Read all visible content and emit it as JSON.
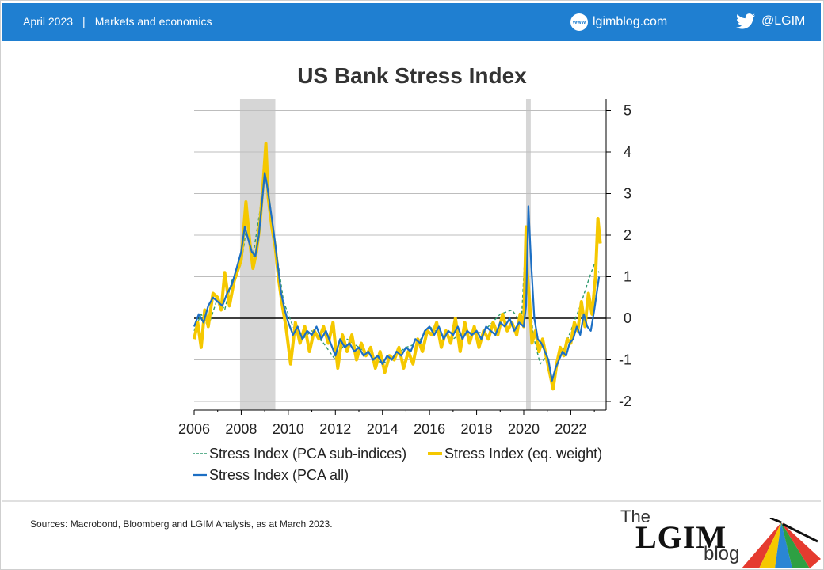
{
  "header": {
    "date": "April 2023",
    "section": "Markets and economics",
    "site_icon": "www",
    "site": "lgimblog.com",
    "twitter_icon": "twitter-bird-icon",
    "twitter": "@LGIM"
  },
  "colors": {
    "header_bg": "#1f7fd1",
    "pca_sub": "#2f9a6e",
    "eq_weight": "#f5c800",
    "pca_all": "#1c6fc4",
    "recession_band": "#d6d6d6"
  },
  "chart_data": {
    "type": "line",
    "title": "US Bank Stress Index",
    "xlim": [
      2006,
      2023.6
    ],
    "ylim": [
      -2.2,
      5.2
    ],
    "x_ticks": [
      "2006",
      "2008",
      "2010",
      "2012",
      "2014",
      "2016",
      "2018",
      "2020",
      "2022"
    ],
    "y_ticks": [
      "5",
      "4",
      "3",
      "2",
      "1",
      "0",
      "-1",
      "-2"
    ],
    "y_axis_side": "right",
    "grid": "horizontal",
    "recession_bands": [
      [
        2007.95,
        2009.45
      ],
      [
        2020.1,
        2020.3
      ]
    ],
    "legend_position": "bottom",
    "series": [
      {
        "name": "Stress Index (PCA sub-indices)",
        "style": "dashed",
        "x": [
          2006.0,
          2006.3,
          2006.6,
          2007.0,
          2007.3,
          2007.6,
          2008.0,
          2008.2,
          2008.5,
          2008.8,
          2009.0,
          2009.2,
          2009.5,
          2009.8,
          2010.2,
          2010.6,
          2011.0,
          2011.5,
          2012.0,
          2012.5,
          2013.0,
          2013.5,
          2014.0,
          2014.5,
          2015.0,
          2015.5,
          2016.0,
          2016.5,
          2017.0,
          2017.5,
          2018.0,
          2018.5,
          2019.0,
          2019.5,
          2019.9,
          2020.1,
          2020.2,
          2020.4,
          2020.7,
          2021.0,
          2021.2,
          2021.5,
          2021.8,
          2022.0,
          2022.4,
          2022.8,
          2023.0,
          2023.2
        ],
        "y": [
          -0.3,
          0.1,
          -0.2,
          0.5,
          0.2,
          0.9,
          1.3,
          2.1,
          1.5,
          2.6,
          3.7,
          2.6,
          1.6,
          0.4,
          -0.2,
          -0.5,
          -0.3,
          -0.6,
          -1.0,
          -0.5,
          -0.7,
          -0.9,
          -1.1,
          -0.9,
          -0.7,
          -0.6,
          -0.2,
          -0.4,
          -0.5,
          -0.3,
          -0.4,
          -0.2,
          0.1,
          0.2,
          -0.1,
          2.1,
          0.9,
          -0.4,
          -1.1,
          -0.9,
          -1.6,
          -1.0,
          -0.6,
          -0.3,
          0.3,
          1.0,
          1.3,
          1.1
        ]
      },
      {
        "name": "Stress Index (eq. weight)",
        "style": "solid-thick",
        "x": [
          2006.0,
          2006.15,
          2006.3,
          2006.45,
          2006.6,
          2006.8,
          2007.0,
          2007.15,
          2007.3,
          2007.5,
          2007.7,
          2008.0,
          2008.1,
          2008.2,
          2008.35,
          2008.5,
          2008.65,
          2008.8,
          2008.95,
          2009.05,
          2009.15,
          2009.3,
          2009.45,
          2009.6,
          2009.75,
          2009.9,
          2010.1,
          2010.3,
          2010.5,
          2010.7,
          2010.9,
          2011.1,
          2011.3,
          2011.5,
          2011.7,
          2011.9,
          2012.1,
          2012.3,
          2012.5,
          2012.7,
          2012.9,
          2013.1,
          2013.3,
          2013.5,
          2013.7,
          2013.9,
          2014.1,
          2014.3,
          2014.5,
          2014.7,
          2014.9,
          2015.1,
          2015.3,
          2015.5,
          2015.7,
          2015.9,
          2016.1,
          2016.3,
          2016.5,
          2016.7,
          2016.9,
          2017.1,
          2017.3,
          2017.5,
          2017.7,
          2017.9,
          2018.1,
          2018.3,
          2018.5,
          2018.7,
          2018.9,
          2019.1,
          2019.3,
          2019.5,
          2019.7,
          2019.85,
          2020.0,
          2020.1,
          2020.15,
          2020.25,
          2020.35,
          2020.5,
          2020.65,
          2020.8,
          2020.95,
          2021.1,
          2021.25,
          2021.4,
          2021.55,
          2021.7,
          2021.85,
          2022.0,
          2022.15,
          2022.3,
          2022.45,
          2022.6,
          2022.75,
          2022.9,
          2023.05,
          2023.15,
          2023.25
        ],
        "y": [
          -0.5,
          -0.1,
          -0.7,
          0.2,
          -0.2,
          0.6,
          0.5,
          0.2,
          1.1,
          0.3,
          0.9,
          1.4,
          2.1,
          2.8,
          1.9,
          1.2,
          1.6,
          2.3,
          3.4,
          4.2,
          2.9,
          2.2,
          1.7,
          0.9,
          0.3,
          -0.2,
          -1.1,
          -0.1,
          -0.6,
          -0.2,
          -0.8,
          -0.3,
          -0.5,
          -0.2,
          -0.6,
          -0.1,
          -1.2,
          -0.4,
          -0.8,
          -0.4,
          -1.0,
          -0.6,
          -0.9,
          -0.7,
          -1.2,
          -0.8,
          -1.3,
          -0.9,
          -1.0,
          -0.7,
          -1.2,
          -0.8,
          -1.1,
          -0.5,
          -0.8,
          -0.3,
          -0.4,
          -0.1,
          -0.7,
          -0.3,
          -0.6,
          0.0,
          -0.8,
          -0.1,
          -0.6,
          -0.2,
          -0.7,
          -0.3,
          -0.5,
          -0.1,
          -0.4,
          0.1,
          -0.3,
          -0.1,
          -0.4,
          0.1,
          -0.2,
          2.2,
          1.1,
          0.4,
          -0.6,
          -0.3,
          -0.8,
          -0.5,
          -0.9,
          -1.3,
          -1.7,
          -1.1,
          -0.7,
          -0.9,
          -0.5,
          -0.6,
          -0.1,
          -0.3,
          0.4,
          -0.2,
          0.6,
          0.1,
          1.0,
          2.4,
          1.8
        ]
      },
      {
        "name": "Stress Index (PCA all)",
        "style": "solid",
        "x": [
          2006.0,
          2006.2,
          2006.4,
          2006.6,
          2006.8,
          2007.0,
          2007.2,
          2007.4,
          2007.6,
          2007.8,
          2008.0,
          2008.15,
          2008.3,
          2008.45,
          2008.6,
          2008.75,
          2008.9,
          2009.0,
          2009.1,
          2009.25,
          2009.4,
          2009.55,
          2009.7,
          2009.85,
          2010.0,
          2010.2,
          2010.4,
          2010.6,
          2010.8,
          2011.0,
          2011.2,
          2011.4,
          2011.6,
          2011.8,
          2012.0,
          2012.2,
          2012.4,
          2012.6,
          2012.8,
          2013.0,
          2013.2,
          2013.4,
          2013.6,
          2013.8,
          2014.0,
          2014.2,
          2014.4,
          2014.6,
          2014.8,
          2015.0,
          2015.2,
          2015.4,
          2015.6,
          2015.8,
          2016.0,
          2016.2,
          2016.4,
          2016.6,
          2016.8,
          2017.0,
          2017.2,
          2017.4,
          2017.6,
          2017.8,
          2018.0,
          2018.2,
          2018.4,
          2018.6,
          2018.8,
          2019.0,
          2019.2,
          2019.4,
          2019.6,
          2019.8,
          2020.0,
          2020.1,
          2020.2,
          2020.3,
          2020.45,
          2020.6,
          2020.75,
          2020.9,
          2021.05,
          2021.2,
          2021.35,
          2021.5,
          2021.65,
          2021.8,
          2021.95,
          2022.1,
          2022.25,
          2022.4,
          2022.55,
          2022.7,
          2022.85,
          2023.0,
          2023.1,
          2023.2
        ],
        "y": [
          -0.2,
          0.1,
          -0.1,
          0.3,
          0.5,
          0.4,
          0.3,
          0.6,
          0.8,
          1.2,
          1.6,
          2.2,
          1.9,
          1.6,
          1.5,
          2.0,
          2.9,
          3.5,
          3.2,
          2.6,
          2.0,
          1.3,
          0.6,
          0.2,
          -0.1,
          -0.4,
          -0.2,
          -0.5,
          -0.3,
          -0.4,
          -0.2,
          -0.5,
          -0.3,
          -0.6,
          -0.9,
          -0.5,
          -0.7,
          -0.6,
          -0.8,
          -0.7,
          -0.9,
          -0.8,
          -1.0,
          -0.9,
          -1.1,
          -0.9,
          -1.0,
          -0.8,
          -0.9,
          -0.7,
          -0.8,
          -0.5,
          -0.6,
          -0.3,
          -0.2,
          -0.4,
          -0.2,
          -0.5,
          -0.3,
          -0.4,
          -0.2,
          -0.5,
          -0.3,
          -0.4,
          -0.3,
          -0.5,
          -0.2,
          -0.3,
          -0.4,
          -0.1,
          -0.2,
          0.0,
          -0.3,
          -0.1,
          -0.2,
          0.3,
          2.7,
          1.5,
          0.0,
          -0.5,
          -0.6,
          -0.8,
          -1.0,
          -1.5,
          -1.2,
          -1.0,
          -0.8,
          -0.9,
          -0.6,
          -0.5,
          -0.2,
          -0.4,
          0.1,
          -0.2,
          -0.3,
          0.2,
          0.6,
          1.0
        ]
      }
    ]
  },
  "footer": {
    "source": "Sources: Macrobond, Bloomberg and LGIM Analysis, as at March 2023.",
    "logo_the": "The",
    "logo_lgim": "LGIM",
    "logo_blog": "blog"
  }
}
